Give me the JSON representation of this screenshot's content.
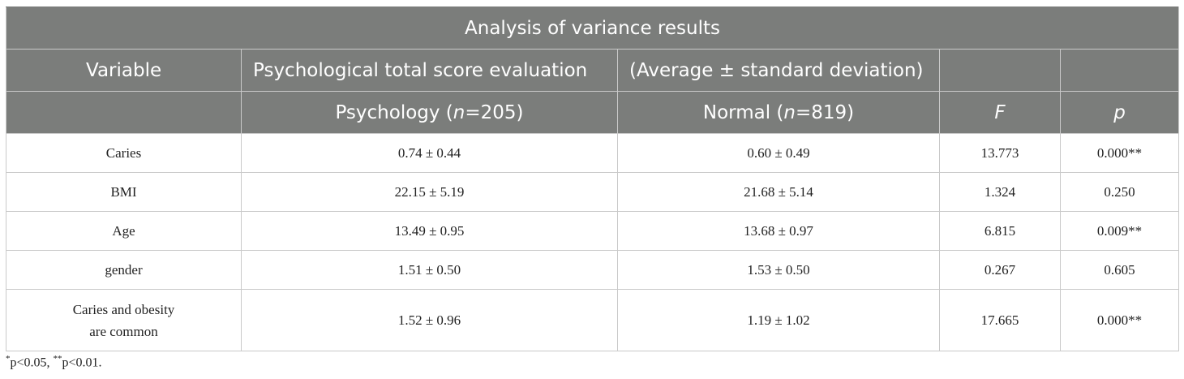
{
  "table": {
    "title": "Analysis of variance results",
    "header_row1": {
      "variable": "Variable",
      "psych_eval": "Psychological total score evaluation",
      "avg_sd": "(Average ± standard deviation)"
    },
    "header_row2": {
      "psychology_prefix": "Psychology (",
      "psychology_n": "n",
      "psychology_suffix": "=205)",
      "normal_prefix": "Normal (",
      "normal_n": "n",
      "normal_suffix": "=819)",
      "f": "F",
      "p": "p"
    },
    "rows": [
      {
        "variable": "Caries",
        "psychology": "0.74 ± 0.44",
        "normal": "0.60 ± 0.49",
        "f": "13.773",
        "p": "0.000**"
      },
      {
        "variable": "BMI",
        "psychology": "22.15 ± 5.19",
        "normal": "21.68 ± 5.14",
        "f": "1.324",
        "p": "0.250"
      },
      {
        "variable": "Age",
        "psychology": "13.49 ± 0.95",
        "normal": "13.68 ± 0.97",
        "f": "6.815",
        "p": "0.009**"
      },
      {
        "variable": "gender",
        "psychology": "1.51 ± 0.50",
        "normal": "1.53 ± 0.50",
        "f": "0.267",
        "p": "0.605"
      },
      {
        "variable_line1": "Caries and obesity",
        "variable_line2": "are common",
        "psychology": "1.52 ± 0.96",
        "normal": "1.19 ± 1.02",
        "f": "17.665",
        "p": "0.000**"
      }
    ]
  },
  "footnote": {
    "mark1": "*",
    "text1": "p<0.05, ",
    "mark2": "**",
    "text2": "p<0.01."
  },
  "colors": {
    "header_bg": "#7b7d7b",
    "border": "#c9c9c9",
    "text": "#222222"
  }
}
